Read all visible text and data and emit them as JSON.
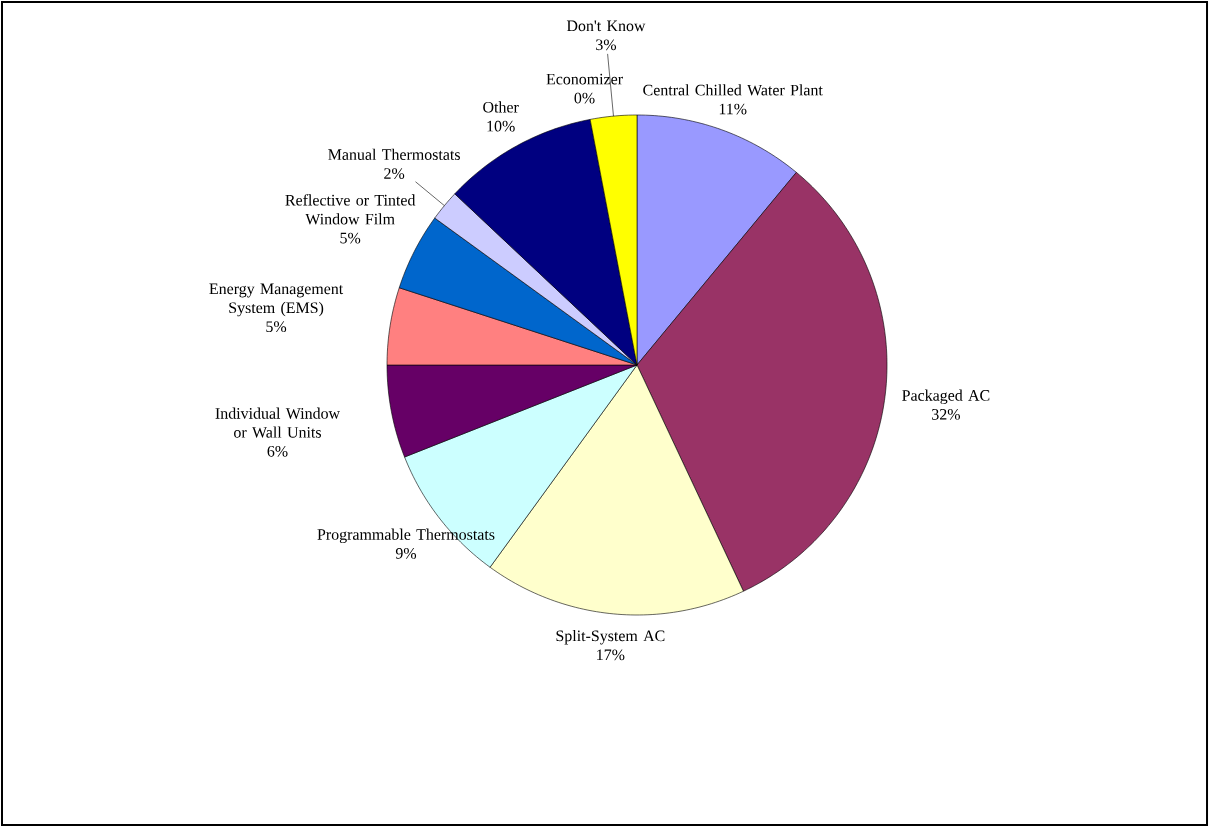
{
  "chart_data": {
    "type": "pie",
    "categories": [
      "Central Chilled Water Plant",
      "Packaged AC",
      "Split-System AC",
      "Programmable Thermostats",
      "Individual Window or Wall Units",
      "Energy Management System (EMS)",
      "Reflective or Tinted Window Film",
      "Manual Thermostats",
      "Other",
      "Economizer",
      "Don't Know"
    ],
    "values": [
      11,
      32,
      17,
      9,
      6,
      5,
      5,
      2,
      10,
      0,
      3
    ],
    "value_labels": [
      "11%",
      "32%",
      "17%",
      "9%",
      "6%",
      "5%",
      "5%",
      "2%",
      "10%",
      "0%",
      "3%"
    ],
    "colors": [
      "#9999ff",
      "#993366",
      "#ffffcc",
      "#ccffff",
      "#660066",
      "#ff8080",
      "#0066cc",
      "#ccccff",
      "#000080",
      "#ff00ff",
      "#ffff00"
    ]
  }
}
